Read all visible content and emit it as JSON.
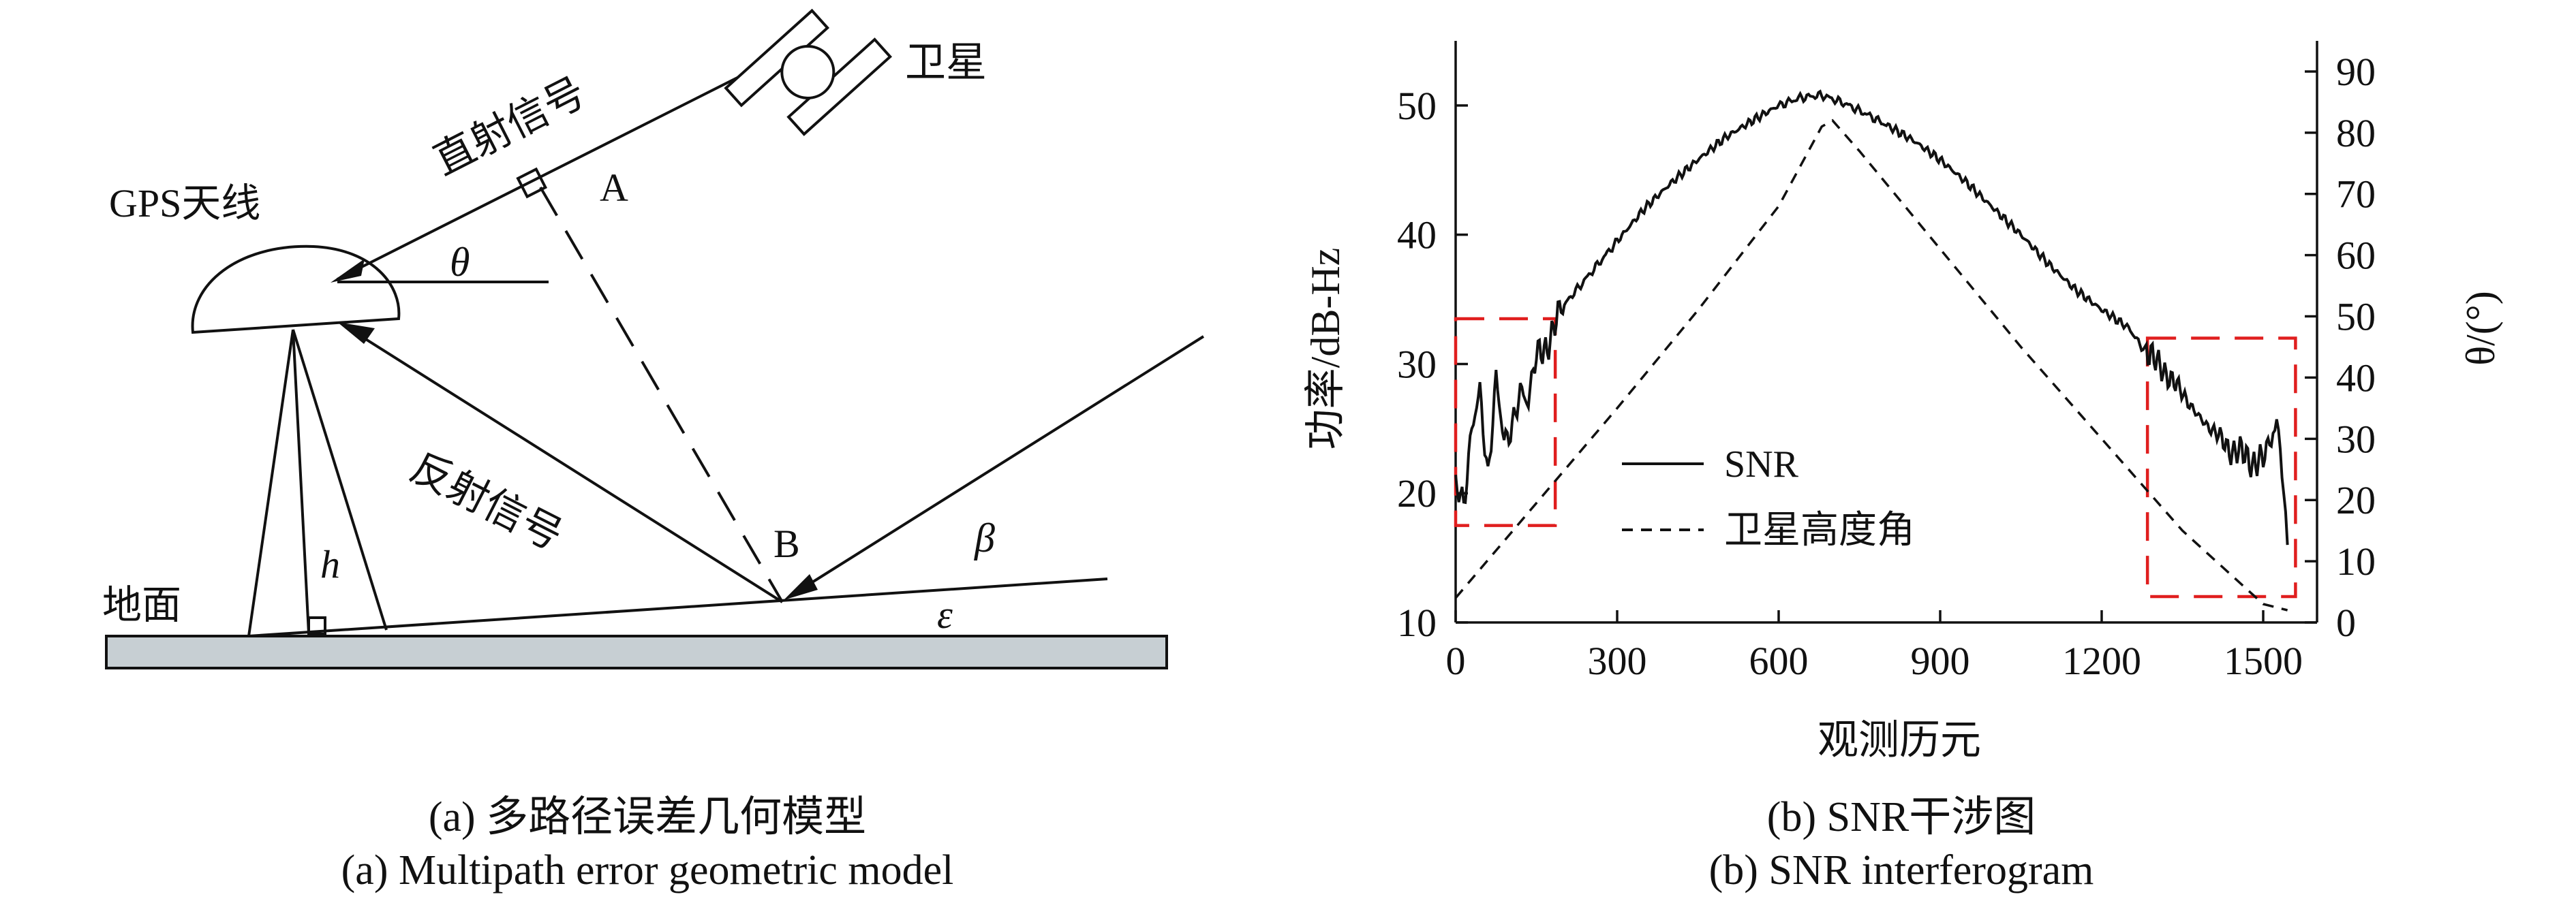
{
  "diagram": {
    "labels": {
      "satellite": "卫星",
      "direct_signal": "直射信号",
      "gps_antenna": "GPS天线",
      "theta": "θ",
      "point_a": "A",
      "point_b": "B",
      "reflected_signal": "反射信号",
      "height": "h",
      "ground": "地面",
      "beta": "β",
      "epsilon": "ε"
    }
  },
  "chart_data": {
    "type": "line",
    "title": "",
    "xlabel": "观测历元",
    "ylabel": "功率/dB-Hz",
    "ylabel_right": "θ/(°)",
    "xlim": [
      0,
      1600
    ],
    "ylim": [
      10,
      55
    ],
    "ylim_right": [
      0,
      95
    ],
    "x_ticks": [
      0,
      300,
      600,
      900,
      1200,
      1500
    ],
    "y_ticks": [
      10,
      20,
      30,
      40,
      50
    ],
    "y_ticks_right": [
      0,
      10,
      20,
      30,
      40,
      50,
      60,
      70,
      80,
      90
    ],
    "legend_position": "bottom-left",
    "series": [
      {
        "name": "SNR",
        "style": "solid",
        "axis": "left",
        "x": [
          0,
          15,
          30,
          45,
          60,
          75,
          90,
          105,
          120,
          135,
          150,
          170,
          190,
          220,
          260,
          300,
          350,
          400,
          450,
          500,
          550,
          600,
          640,
          680,
          720,
          760,
          800,
          850,
          900,
          950,
          1000,
          1050,
          1100,
          1150,
          1200,
          1250,
          1280,
          1300,
          1320,
          1340,
          1360,
          1380,
          1400,
          1420,
          1440,
          1460,
          1480,
          1500,
          1515,
          1525,
          1535,
          1545
        ],
        "values": [
          21,
          19,
          25,
          28,
          21,
          29,
          24,
          25,
          28,
          27,
          31,
          31,
          34,
          35.5,
          37.5,
          39.5,
          42,
          44,
          45.8,
          47.5,
          48.8,
          50,
          50.6,
          50.8,
          50.2,
          49.4,
          48.5,
          47.3,
          45.8,
          44,
          42,
          40,
          37.8,
          35.8,
          34.2,
          32.8,
          31,
          30.5,
          29,
          28.5,
          27,
          26,
          25,
          24.5,
          23,
          23.5,
          22,
          23,
          24,
          26.5,
          21,
          16
        ]
      },
      {
        "name": "卫星高度角",
        "style": "dashed",
        "axis": "right",
        "x": [
          0,
          150,
          300,
          450,
          600,
          680,
          700,
          750,
          900,
          1050,
          1200,
          1350,
          1500,
          1545
        ],
        "values": [
          4,
          19.5,
          35,
          51,
          68,
          81,
          82,
          77,
          61,
          45,
          30,
          15,
          3,
          2
        ]
      }
    ],
    "annotations": {
      "dashed_boxes": [
        {
          "x": [
            0,
            185
          ],
          "y": [
            17.5,
            33.5
          ]
        },
        {
          "x": [
            1285,
            1560
          ],
          "y": [
            12,
            32
          ]
        }
      ]
    }
  },
  "captions": {
    "left_zh": "(a) 多路径误差几何模型",
    "left_en": "(a) Multipath error geometric model",
    "right_zh": "(b) SNR干涉图",
    "right_en": "(b) SNR interferogram"
  }
}
